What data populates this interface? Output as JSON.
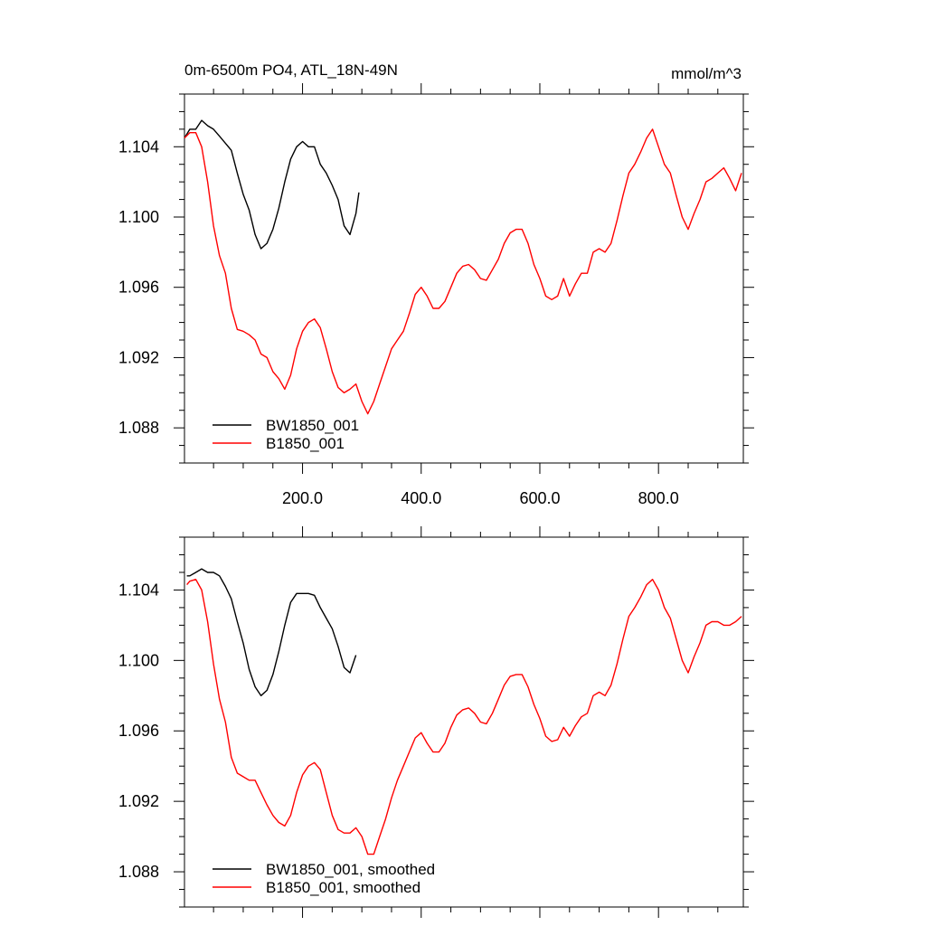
{
  "chart_data": [
    {
      "type": "line",
      "title": "0m-6500m PO4, ATL_18N-49N",
      "units": "mmol/m^3",
      "xlim": [
        1,
        943
      ],
      "ylim": [
        1.086,
        1.107
      ],
      "x_ticks": [
        200,
        400,
        600,
        800
      ],
      "x_tick_labels": [
        "200.0",
        "400.0",
        "600.0",
        "800.0"
      ],
      "y_ticks": [
        1.088,
        1.092,
        1.096,
        1.1,
        1.104
      ],
      "y_tick_labels": [
        "1.088",
        "1.092",
        "1.096",
        "1.100",
        "1.104"
      ],
      "legend_position": "bottom-left",
      "series": [
        {
          "name": "BW1850_001",
          "color": "#000000",
          "points": [
            [
              1,
              1.1045
            ],
            [
              10,
              1.105
            ],
            [
              20,
              1.105
            ],
            [
              30,
              1.1055
            ],
            [
              40,
              1.1052
            ],
            [
              50,
              1.105
            ],
            [
              60,
              1.1046
            ],
            [
              70,
              1.1042
            ],
            [
              80,
              1.1038
            ],
            [
              90,
              1.1025
            ],
            [
              100,
              1.1013
            ],
            [
              110,
              1.1004
            ],
            [
              120,
              1.099
            ],
            [
              130,
              1.0982
            ],
            [
              140,
              1.0985
            ],
            [
              150,
              1.0993
            ],
            [
              160,
              1.1005
            ],
            [
              170,
              1.102
            ],
            [
              180,
              1.1033
            ],
            [
              190,
              1.104
            ],
            [
              200,
              1.1043
            ],
            [
              210,
              1.104
            ],
            [
              220,
              1.104
            ],
            [
              230,
              1.103
            ],
            [
              240,
              1.1025
            ],
            [
              250,
              1.1018
            ],
            [
              260,
              1.101
            ],
            [
              270,
              1.0995
            ],
            [
              280,
              1.099
            ],
            [
              290,
              1.1002
            ],
            [
              295,
              1.1014
            ]
          ]
        },
        {
          "name": "B1850_001",
          "color": "#ff0000",
          "points": [
            [
              1,
              1.1045
            ],
            [
              10,
              1.1048
            ],
            [
              20,
              1.1048
            ],
            [
              30,
              1.104
            ],
            [
              40,
              1.102
            ],
            [
              50,
              1.0995
            ],
            [
              60,
              1.0978
            ],
            [
              70,
              1.0968
            ],
            [
              80,
              1.0948
            ],
            [
              90,
              1.0936
            ],
            [
              100,
              1.0935
            ],
            [
              110,
              1.0933
            ],
            [
              120,
              1.093
            ],
            [
              130,
              1.0922
            ],
            [
              140,
              1.092
            ],
            [
              150,
              1.0912
            ],
            [
              160,
              1.0908
            ],
            [
              170,
              1.0902
            ],
            [
              180,
              1.091
            ],
            [
              190,
              1.0925
            ],
            [
              200,
              1.0935
            ],
            [
              210,
              1.094
            ],
            [
              220,
              1.0942
            ],
            [
              230,
              1.0937
            ],
            [
              240,
              1.0925
            ],
            [
              250,
              1.0912
            ],
            [
              260,
              1.0903
            ],
            [
              270,
              1.09
            ],
            [
              280,
              1.0902
            ],
            [
              290,
              1.0905
            ],
            [
              300,
              1.0895
            ],
            [
              310,
              1.0888
            ],
            [
              320,
              1.0895
            ],
            [
              330,
              1.0905
            ],
            [
              340,
              1.0915
            ],
            [
              350,
              1.0925
            ],
            [
              360,
              1.093
            ],
            [
              370,
              1.0935
            ],
            [
              380,
              1.0945
            ],
            [
              390,
              1.0956
            ],
            [
              400,
              1.096
            ],
            [
              410,
              1.0955
            ],
            [
              420,
              1.0948
            ],
            [
              430,
              1.0948
            ],
            [
              440,
              1.0952
            ],
            [
              450,
              1.096
            ],
            [
              460,
              1.0968
            ],
            [
              470,
              1.0972
            ],
            [
              480,
              1.0973
            ],
            [
              490,
              1.097
            ],
            [
              500,
              1.0965
            ],
            [
              510,
              1.0964
            ],
            [
              520,
              1.097
            ],
            [
              530,
              1.0976
            ],
            [
              540,
              1.0985
            ],
            [
              550,
              1.0991
            ],
            [
              560,
              1.0993
            ],
            [
              570,
              1.0993
            ],
            [
              580,
              1.0985
            ],
            [
              590,
              1.0973
            ],
            [
              600,
              1.0965
            ],
            [
              610,
              1.0955
            ],
            [
              620,
              1.0953
            ],
            [
              630,
              1.0955
            ],
            [
              640,
              1.0965
            ],
            [
              650,
              1.0955
            ],
            [
              660,
              1.0962
            ],
            [
              670,
              1.0968
            ],
            [
              680,
              1.0968
            ],
            [
              690,
              1.098
            ],
            [
              700,
              1.0982
            ],
            [
              710,
              1.098
            ],
            [
              720,
              1.0985
            ],
            [
              730,
              1.0998
            ],
            [
              740,
              1.1012
            ],
            [
              750,
              1.1025
            ],
            [
              760,
              1.103
            ],
            [
              770,
              1.1037
            ],
            [
              780,
              1.1045
            ],
            [
              790,
              1.105
            ],
            [
              800,
              1.104
            ],
            [
              810,
              1.103
            ],
            [
              820,
              1.1025
            ],
            [
              830,
              1.1012
            ],
            [
              840,
              1.1
            ],
            [
              850,
              1.0993
            ],
            [
              860,
              1.1002
            ],
            [
              870,
              1.101
            ],
            [
              880,
              1.102
            ],
            [
              890,
              1.1022
            ],
            [
              900,
              1.1025
            ],
            [
              910,
              1.1028
            ],
            [
              920,
              1.1022
            ],
            [
              930,
              1.1015
            ],
            [
              940,
              1.1025
            ]
          ]
        }
      ]
    },
    {
      "type": "line",
      "xlim": [
        1,
        943
      ],
      "ylim": [
        1.086,
        1.107
      ],
      "x_ticks": [
        200,
        400,
        600,
        800
      ],
      "y_ticks": [
        1.088,
        1.092,
        1.096,
        1.1,
        1.104
      ],
      "y_tick_labels": [
        "1.088",
        "1.092",
        "1.096",
        "1.100",
        "1.104"
      ],
      "legend_position": "bottom-left",
      "series": [
        {
          "name": "BW1850_001, smoothed",
          "color": "#000000",
          "points": [
            [
              5,
              1.1048
            ],
            [
              10,
              1.1048
            ],
            [
              20,
              1.105
            ],
            [
              30,
              1.1052
            ],
            [
              40,
              1.105
            ],
            [
              50,
              1.105
            ],
            [
              60,
              1.1048
            ],
            [
              70,
              1.1042
            ],
            [
              80,
              1.1035
            ],
            [
              90,
              1.1022
            ],
            [
              100,
              1.101
            ],
            [
              110,
              1.0995
            ],
            [
              120,
              1.0985
            ],
            [
              130,
              1.098
            ],
            [
              140,
              1.0983
            ],
            [
              150,
              1.0992
            ],
            [
              160,
              1.1005
            ],
            [
              170,
              1.102
            ],
            [
              180,
              1.1033
            ],
            [
              190,
              1.1038
            ],
            [
              200,
              1.1038
            ],
            [
              210,
              1.1038
            ],
            [
              220,
              1.1037
            ],
            [
              230,
              1.103
            ],
            [
              240,
              1.1024
            ],
            [
              250,
              1.1018
            ],
            [
              260,
              1.1008
            ],
            [
              270,
              1.0996
            ],
            [
              280,
              1.0993
            ],
            [
              290,
              1.1003
            ]
          ]
        },
        {
          "name": "B1850_001, smoothed",
          "color": "#ff0000",
          "points": [
            [
              5,
              1.1043
            ],
            [
              10,
              1.1045
            ],
            [
              20,
              1.1046
            ],
            [
              30,
              1.104
            ],
            [
              40,
              1.1022
            ],
            [
              50,
              1.0998
            ],
            [
              60,
              1.0978
            ],
            [
              70,
              1.0965
            ],
            [
              80,
              1.0945
            ],
            [
              90,
              1.0936
            ],
            [
              100,
              1.0934
            ],
            [
              110,
              1.0932
            ],
            [
              120,
              1.0932
            ],
            [
              130,
              1.0925
            ],
            [
              140,
              1.0918
            ],
            [
              150,
              1.0912
            ],
            [
              160,
              1.0908
            ],
            [
              170,
              1.0906
            ],
            [
              180,
              1.0912
            ],
            [
              190,
              1.0925
            ],
            [
              200,
              1.0935
            ],
            [
              210,
              1.094
            ],
            [
              220,
              1.0942
            ],
            [
              230,
              1.0938
            ],
            [
              240,
              1.0925
            ],
            [
              250,
              1.0912
            ],
            [
              260,
              1.0904
            ],
            [
              270,
              1.0902
            ],
            [
              280,
              1.0902
            ],
            [
              290,
              1.0905
            ],
            [
              300,
              1.09
            ],
            [
              310,
              1.089
            ],
            [
              320,
              1.089
            ],
            [
              330,
              1.09
            ],
            [
              340,
              1.091
            ],
            [
              350,
              1.0922
            ],
            [
              360,
              1.0932
            ],
            [
              370,
              1.094
            ],
            [
              380,
              1.0948
            ],
            [
              390,
              1.0956
            ],
            [
              400,
              1.0959
            ],
            [
              410,
              1.0953
            ],
            [
              420,
              1.0948
            ],
            [
              430,
              1.0948
            ],
            [
              440,
              1.0953
            ],
            [
              450,
              1.0962
            ],
            [
              460,
              1.0969
            ],
            [
              470,
              1.0972
            ],
            [
              480,
              1.0973
            ],
            [
              490,
              1.097
            ],
            [
              500,
              1.0965
            ],
            [
              510,
              1.0964
            ],
            [
              520,
              1.097
            ],
            [
              530,
              1.0978
            ],
            [
              540,
              1.0986
            ],
            [
              550,
              1.0991
            ],
            [
              560,
              1.0992
            ],
            [
              570,
              1.0992
            ],
            [
              580,
              1.0985
            ],
            [
              590,
              1.0975
            ],
            [
              600,
              1.0967
            ],
            [
              610,
              1.0957
            ],
            [
              620,
              1.0954
            ],
            [
              630,
              1.0955
            ],
            [
              640,
              1.0962
            ],
            [
              650,
              1.0957
            ],
            [
              660,
              1.0963
            ],
            [
              670,
              1.0968
            ],
            [
              680,
              1.097
            ],
            [
              690,
              1.098
            ],
            [
              700,
              1.0982
            ],
            [
              710,
              1.098
            ],
            [
              720,
              1.0986
            ],
            [
              730,
              1.0998
            ],
            [
              740,
              1.1012
            ],
            [
              750,
              1.1025
            ],
            [
              760,
              1.103
            ],
            [
              770,
              1.1036
            ],
            [
              780,
              1.1043
            ],
            [
              790,
              1.1046
            ],
            [
              800,
              1.104
            ],
            [
              810,
              1.103
            ],
            [
              820,
              1.1024
            ],
            [
              830,
              1.1012
            ],
            [
              840,
              1.1
            ],
            [
              850,
              1.0993
            ],
            [
              860,
              1.1002
            ],
            [
              870,
              1.101
            ],
            [
              880,
              1.102
            ],
            [
              890,
              1.1022
            ],
            [
              900,
              1.1022
            ],
            [
              910,
              1.102
            ],
            [
              920,
              1.102
            ],
            [
              930,
              1.1022
            ],
            [
              940,
              1.1025
            ]
          ]
        }
      ]
    }
  ]
}
